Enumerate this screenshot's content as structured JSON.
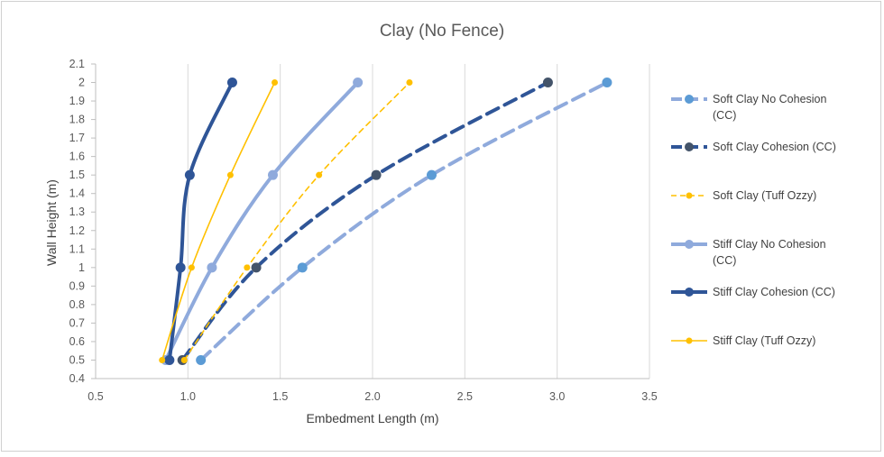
{
  "chart_data": {
    "type": "line",
    "title": "Clay (No Fence)",
    "xlabel": "Embedment Length (m)",
    "ylabel": "Wall Height (m)",
    "xlim": [
      0.5,
      3.5
    ],
    "ylim": [
      0.4,
      2.1
    ],
    "x_ticks": [
      "0.5",
      "1.0",
      "1.5",
      "2.0",
      "2.5",
      "3.0",
      "3.5"
    ],
    "y_ticks": [
      "0.4",
      "0.5",
      "0.6",
      "0.7",
      "0.8",
      "0.9",
      "1",
      "1.1",
      "1.2",
      "1.3",
      "1.4",
      "1.5",
      "1.6",
      "1.7",
      "1.8",
      "1.9",
      "2",
      "2.1"
    ],
    "grid": "vertical",
    "legend_position": "right",
    "series": [
      {
        "name": "Soft Clay No Cohesion (CC)",
        "legend_lines": [
          "Soft Clay No Cohesion",
          "(CC)"
        ],
        "color": "#8faadc",
        "marker_color": "#5b9bd5",
        "dash": "dash",
        "width": "thick",
        "marker": "large",
        "points": [
          [
            1.07,
            0.5
          ],
          [
            1.62,
            1.0
          ],
          [
            2.32,
            1.5
          ],
          [
            3.27,
            2.0
          ]
        ]
      },
      {
        "name": "Soft Clay Cohesion (CC)",
        "legend_lines": [
          "Soft Clay Cohesion (CC)"
        ],
        "color": "#2f5597",
        "marker_color": "#44546a",
        "dash": "dash",
        "width": "thick",
        "marker": "large",
        "points": [
          [
            0.97,
            0.5
          ],
          [
            1.37,
            1.0
          ],
          [
            2.02,
            1.5
          ],
          [
            2.95,
            2.0
          ]
        ]
      },
      {
        "name": "Soft Clay (Tuff Ozzy)",
        "legend_lines": [
          "Soft Clay (Tuff Ozzy)"
        ],
        "color": "#ffc000",
        "marker_color": "#ffc000",
        "dash": "dash",
        "width": "thin",
        "marker": "small",
        "points": [
          [
            0.98,
            0.5
          ],
          [
            1.32,
            1.0
          ],
          [
            1.71,
            1.5
          ],
          [
            2.2,
            2.0
          ]
        ]
      },
      {
        "name": "Stiff Clay No Cohesion (CC)",
        "legend_lines": [
          "Stiff Clay No Cohesion",
          "(CC)"
        ],
        "color": "#8faadc",
        "marker_color": "#8faadc",
        "dash": "solid",
        "width": "thick",
        "marker": "large",
        "points": [
          [
            0.88,
            0.5
          ],
          [
            1.13,
            1.0
          ],
          [
            1.46,
            1.5
          ],
          [
            1.92,
            2.0
          ]
        ]
      },
      {
        "name": "Stiff Clay Cohesion (CC)",
        "legend_lines": [
          "Stiff Clay Cohesion (CC)"
        ],
        "color": "#2f5597",
        "marker_color": "#2f5597",
        "dash": "solid",
        "width": "thick",
        "marker": "large",
        "points": [
          [
            0.9,
            0.5
          ],
          [
            0.96,
            1.0
          ],
          [
            1.01,
            1.5
          ],
          [
            1.24,
            2.0
          ]
        ]
      },
      {
        "name": "Stiff Clay (Tuff Ozzy)",
        "legend_lines": [
          "Stiff Clay (Tuff Ozzy)"
        ],
        "color": "#ffc000",
        "marker_color": "#ffc000",
        "dash": "solid",
        "width": "thin",
        "marker": "small",
        "points": [
          [
            0.86,
            0.5
          ],
          [
            1.02,
            1.0
          ],
          [
            1.23,
            1.5
          ],
          [
            1.47,
            2.0
          ]
        ]
      }
    ]
  }
}
